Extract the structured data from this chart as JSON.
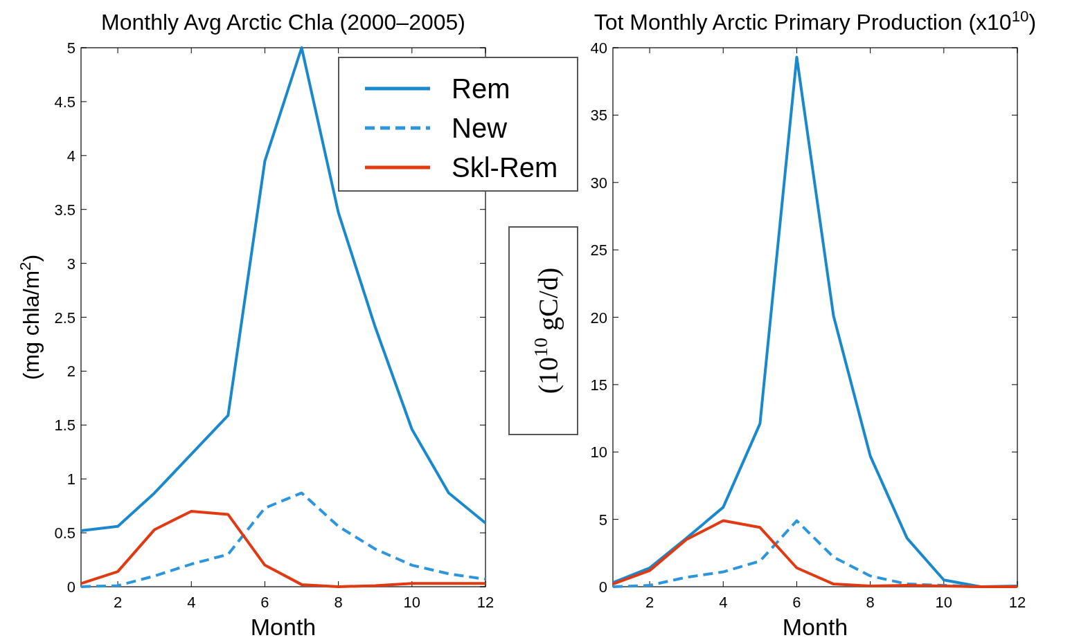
{
  "chart_data": [
    {
      "type": "line",
      "title": "Monthly Avg Arctic Chla (2000–2005)",
      "xlabel": "Month",
      "ylabel": "(mg chla/m$^{2}$)",
      "x": [
        1,
        2,
        3,
        4,
        5,
        6,
        7,
        8,
        9,
        10,
        11,
        12
      ],
      "xlim": [
        1,
        12
      ],
      "xticks": [
        2,
        4,
        6,
        8,
        10,
        12
      ],
      "ylim": [
        0,
        5
      ],
      "yticks": [
        0,
        0.5,
        1,
        1.5,
        2,
        2.5,
        3,
        3.5,
        4,
        4.5,
        5
      ],
      "grid": false,
      "legend": "top right",
      "marker": "none",
      "series": [
        {
          "name": "Rem",
          "color": "#1a88cc",
          "line_style": "solid",
          "values": [
            0.52,
            0.56,
            0.87,
            1.23,
            1.59,
            3.95,
            5.0,
            3.47,
            2.41,
            1.46,
            0.87,
            0.59
          ]
        },
        {
          "name": "New",
          "color": "#2d95dd",
          "line_style": "dashed",
          "values": [
            0,
            0.01,
            0.1,
            0.21,
            0.3,
            0.73,
            0.87,
            0.56,
            0.35,
            0.2,
            0.12,
            0.07
          ]
        },
        {
          "name": "Skl-Rem",
          "color": "#e03a12",
          "line_style": "solid",
          "values": [
            0.03,
            0.14,
            0.53,
            0.7,
            0.67,
            0.2,
            0.02,
            0,
            0.01,
            0.03,
            0.03,
            0.03
          ]
        }
      ]
    },
    {
      "type": "line",
      "title": "Tot Monthly Arctic Primary Production (x10$^{10}$)",
      "xlabel": "Month",
      "ylabel": "(10$^{10}$ gC/d)",
      "x": [
        1,
        2,
        3,
        4,
        5,
        6,
        7,
        8,
        9,
        10,
        11,
        12
      ],
      "xlim": [
        1,
        12
      ],
      "xticks": [
        2,
        4,
        6,
        8,
        10,
        12
      ],
      "ylim": [
        0,
        40
      ],
      "yticks": [
        0,
        5,
        10,
        15,
        20,
        25,
        30,
        35,
        40
      ],
      "grid": false,
      "legend": false,
      "marker": "none",
      "series": [
        {
          "color": "#1a88cc",
          "line_style": "solid",
          "values": [
            0.3,
            1.4,
            3.6,
            5.9,
            12.1,
            39.3,
            20.1,
            9.7,
            3.6,
            0.5,
            0,
            0.05
          ]
        },
        {
          "color": "#2d95dd",
          "line_style": "dashed",
          "values": [
            0,
            0.1,
            0.7,
            1.1,
            1.9,
            4.9,
            2.2,
            0.8,
            0.2,
            0.1,
            0,
            0
          ]
        },
        {
          "color": "#e03a12",
          "line_style": "solid",
          "values": [
            0.2,
            1.2,
            3.5,
            4.9,
            4.4,
            1.4,
            0.2,
            0.05,
            0.1,
            0.05,
            0,
            0
          ]
        }
      ]
    }
  ]
}
